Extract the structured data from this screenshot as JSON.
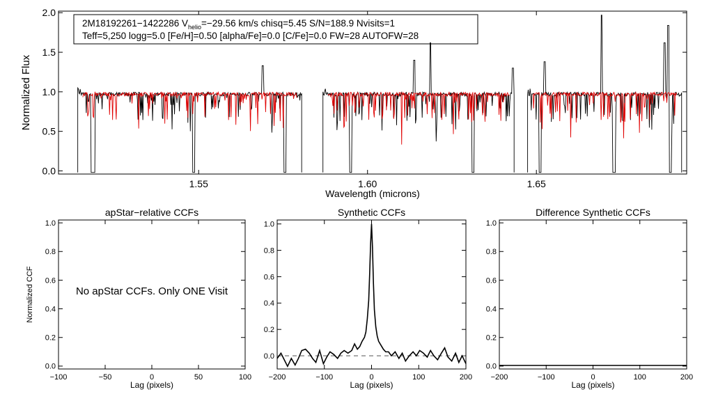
{
  "colors": {
    "observed": "#000000",
    "model": "#e00000",
    "axis": "#000000",
    "zero_line": "#666666"
  },
  "chart_data": [
    {
      "id": "spectrum",
      "type": "line",
      "header": {
        "line1_pre": "2M18192261−1422286  V",
        "line1_sub": "helio",
        "line1_post": "=−29.56 km/s  chisq=5.45  S/N=188.9  Nvisits=1",
        "line2": "Teff=5,250 logg=5.0 [Fe/H]=0.50 [alpha/Fe]=0.0 [C/Fe]=0.0 FW=28 AUTOFW=28"
      },
      "xlabel": "Wavelength (microns)",
      "ylabel": "Normalized Flux",
      "xlim": [
        1.5085,
        1.6945
      ],
      "ylim": [
        -0.04,
        2.02
      ],
      "xticks": [
        1.55,
        1.6,
        1.65
      ],
      "xtick_labels": [
        "1.55",
        "1.60",
        "1.65"
      ],
      "yticks": [
        0.0,
        0.5,
        1.0,
        1.5,
        2.0
      ],
      "ytick_labels": [
        "0.0",
        "0.5",
        "1.0",
        "1.5",
        "2.0"
      ],
      "chips": [
        [
          1.5142,
          1.5805
        ],
        [
          1.5868,
          1.6434
        ],
        [
          1.6474,
          1.693
        ]
      ],
      "model_chips": [
        [
          1.5157,
          1.579
        ],
        [
          1.5883,
          1.642
        ],
        [
          1.649,
          1.6915
        ]
      ],
      "series": [
        {
          "name": "observed",
          "color": "#000000",
          "deep_lines": [
            1.5185,
            1.5189,
            1.5485,
            1.5755,
            1.595,
            1.6312,
            1.6455,
            1.6511,
            1.673,
            1.6893,
            1.6896
          ],
          "emission": [
            [
              1.569,
              1.33
            ],
            [
              1.6138,
              1.4
            ],
            [
              1.6186,
              1.62
            ],
            [
              1.643,
              1.3
            ],
            [
              1.6525,
              1.38
            ],
            [
              1.6693,
              1.97
            ],
            [
              1.688,
              1.62
            ],
            [
              1.689,
              1.84
            ]
          ]
        },
        {
          "name": "model",
          "color": "#e00000"
        }
      ]
    },
    {
      "id": "apstar_ccf",
      "type": "line",
      "title": "apStar−relative CCFs",
      "xlabel": "Lag (pixels)",
      "ylabel": "Normalized CCF",
      "xlim": [
        -100,
        100
      ],
      "ylim": [
        -0.02,
        1.02
      ],
      "xticks": [
        -100,
        -50,
        0,
        50,
        100
      ],
      "xtick_labels": [
        "−100",
        "−50",
        "0",
        "50",
        "100"
      ],
      "yticks": [
        0.0,
        0.2,
        0.4,
        0.6,
        0.8,
        1.0
      ],
      "ytick_labels": [
        "0.0",
        "0.2",
        "0.4",
        "0.6",
        "0.8",
        "1.0"
      ],
      "annotation": "No apStar CCFs.  Only ONE Visit",
      "series": []
    },
    {
      "id": "synthetic_ccf",
      "type": "line",
      "title": "Synthetic CCFs",
      "xlabel": "Lag (pixels)",
      "xlim": [
        -200,
        200
      ],
      "ylim": [
        -0.1,
        1.03
      ],
      "xticks": [
        -200,
        -100,
        0,
        100,
        200
      ],
      "xtick_labels": [
        "−200",
        "−100",
        "0",
        "100",
        "200"
      ],
      "yticks": [
        0.0,
        0.2,
        0.4,
        0.6,
        0.8,
        1.0
      ],
      "ytick_labels": [
        "0.0",
        "0.2",
        "0.4",
        "0.6",
        "0.8",
        "1.0"
      ],
      "reference_line": 0.0,
      "series": [
        {
          "name": "ccf",
          "x": [
            -200,
            -192,
            -185,
            -178,
            -170,
            -162,
            -155,
            -148,
            -140,
            -132,
            -125,
            -118,
            -110,
            -102,
            -95,
            -88,
            -80,
            -72,
            -65,
            -58,
            -50,
            -42,
            -36,
            -30,
            -25,
            -20,
            -15,
            -12,
            -9,
            -6,
            -4,
            -2,
            0,
            2,
            4,
            6,
            9,
            12,
            15,
            20,
            25,
            30,
            36,
            42,
            50,
            58,
            65,
            72,
            80,
            88,
            95,
            102,
            110,
            118,
            125,
            132,
            140,
            148,
            155,
            162,
            170,
            178,
            185,
            192,
            200
          ],
          "y": [
            -0.02,
            0.02,
            -0.03,
            -0.08,
            -0.02,
            -0.07,
            -0.02,
            0.04,
            0.05,
            0.02,
            -0.02,
            -0.05,
            0.04,
            -0.06,
            -0.01,
            0.03,
            0.01,
            -0.02,
            0.02,
            0.04,
            0.02,
            0.04,
            0.09,
            0.05,
            0.07,
            0.11,
            0.14,
            0.18,
            0.28,
            0.42,
            0.62,
            0.85,
            1.0,
            0.82,
            0.55,
            0.35,
            0.22,
            0.15,
            0.11,
            0.08,
            0.05,
            0.03,
            0.03,
            0.0,
            0.03,
            -0.02,
            0.02,
            -0.04,
            0.0,
            0.03,
            0.0,
            0.04,
            0.02,
            -0.01,
            0.04,
            0.0,
            -0.03,
            0.02,
            0.06,
            -0.01,
            -0.04,
            0.02,
            -0.05,
            0.0,
            -0.06
          ]
        }
      ]
    },
    {
      "id": "diff_ccf",
      "type": "line",
      "title": "Difference Synthetic CCFs",
      "xlabel": "Lag (pixels)",
      "xlim": [
        -200,
        200
      ],
      "ylim": [
        -0.02,
        1.02
      ],
      "xticks": [
        -200,
        -100,
        0,
        100,
        200
      ],
      "xtick_labels": [
        "−200",
        "−100",
        "0",
        "100",
        "200"
      ],
      "yticks": [
        0.0,
        0.2,
        0.4,
        0.6,
        0.8,
        1.0
      ],
      "ytick_labels": [
        "0.0",
        "0.2",
        "0.4",
        "0.6",
        "0.8",
        "1.0"
      ],
      "series": [
        {
          "name": "difference",
          "x": [
            -200,
            200
          ],
          "y": [
            0.0,
            0.0
          ]
        }
      ]
    }
  ]
}
